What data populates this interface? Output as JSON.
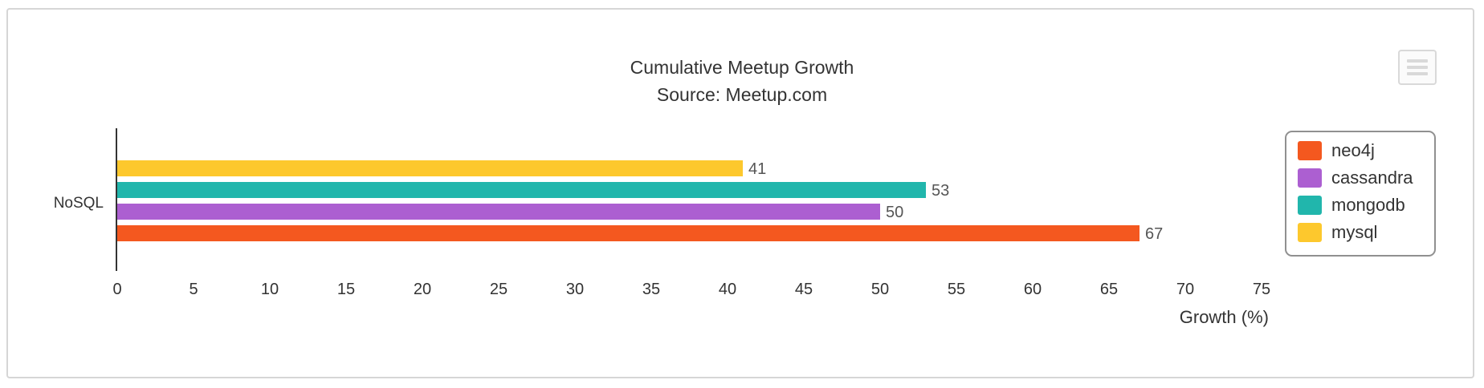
{
  "chart_data": {
    "type": "bar",
    "orientation": "horizontal",
    "title": "Cumulative Meetup Growth",
    "subtitle": "Source: Meetup.com",
    "categories": [
      "NoSQL"
    ],
    "series": [
      {
        "name": "neo4j",
        "color": "#f4581f",
        "values": [
          67
        ]
      },
      {
        "name": "cassandra",
        "color": "#ac5fd1",
        "values": [
          50
        ]
      },
      {
        "name": "mongodb",
        "color": "#21b6ac",
        "values": [
          53
        ]
      },
      {
        "name": "mysql",
        "color": "#fdc82d",
        "values": [
          41
        ]
      }
    ],
    "xlabel": "Growth (%)",
    "ylabel": "",
    "xlim": [
      0,
      75
    ],
    "xticks": [
      "0",
      "5",
      "10",
      "15",
      "20",
      "25",
      "30",
      "35",
      "40",
      "45",
      "50",
      "55",
      "60",
      "65",
      "70",
      "75"
    ],
    "grid": false,
    "legend_position": "right",
    "data_labels": true
  },
  "export_menu": {
    "icon": "hamburger-menu-icon"
  }
}
